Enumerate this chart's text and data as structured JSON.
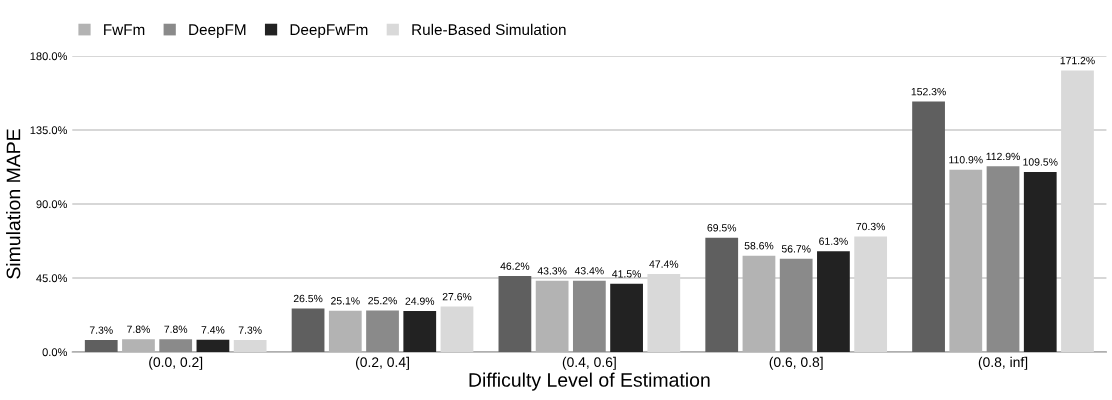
{
  "chart_data": {
    "type": "bar",
    "xlabel": "Difficulty Level of Estimation",
    "ylabel": "Simulation MAPE",
    "categories": [
      "(0.0, 0.2]",
      "(0.2, 0.4]",
      "(0.4, 0.6]",
      "(0.6, 0.8]",
      "(0.8, inf]"
    ],
    "series": [
      {
        "color": "#5f5f5f",
        "values": [
          7.3,
          26.5,
          46.2,
          69.5,
          152.3
        ],
        "value_labels": [
          "7.3%",
          "26.5%",
          "46.2%",
          "69.5%",
          "152.3%"
        ]
      },
      {
        "name": "FwFm",
        "color": "#b3b3b3",
        "values": [
          7.8,
          25.1,
          43.3,
          58.6,
          110.9
        ],
        "value_labels": [
          "7.8%",
          "25.1%",
          "43.3%",
          "58.6%",
          "110.9%"
        ]
      },
      {
        "name": "DeepFM",
        "color": "#8a8a8a",
        "values": [
          7.8,
          25.2,
          43.4,
          56.7,
          112.9
        ],
        "value_labels": [
          "7.8%",
          "25.2%",
          "43.4%",
          "56.7%",
          "112.9%"
        ]
      },
      {
        "name": "DeepFwFm",
        "color": "#222222",
        "values": [
          7.4,
          24.9,
          41.5,
          61.3,
          109.5
        ],
        "value_labels": [
          "7.4%",
          "24.9%",
          "41.5%",
          "61.3%",
          "109.5%"
        ]
      },
      {
        "name": "Rule-Based Simulation",
        "color": "#d9d9d9",
        "values": [
          7.3,
          27.6,
          47.4,
          70.3,
          171.2
        ],
        "value_labels": [
          "7.3%",
          "27.6%",
          "47.4%",
          "70.3%",
          "171.2%"
        ]
      }
    ],
    "ylim": [
      0,
      180
    ],
    "yticks": [
      {
        "value": 0,
        "label": "0.0%"
      },
      {
        "value": 45,
        "label": "45.0%"
      },
      {
        "value": 90,
        "label": "90.0%"
      },
      {
        "value": 135,
        "label": "135.0%"
      },
      {
        "value": 180,
        "label": "180.0%"
      }
    ],
    "grid": "y",
    "legend": "top left"
  }
}
